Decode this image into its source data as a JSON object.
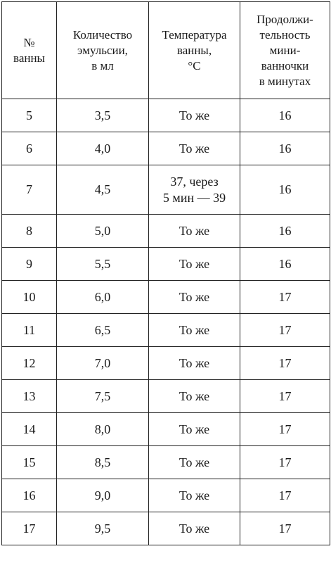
{
  "headers": [
    "№\nванны",
    "Количество\nэмульсии,\nв мл",
    "Температура\nванны,\n°C",
    "Продолжи-\nтельность\nмини-\nванночки\nв минутах"
  ],
  "rows": [
    {
      "bath": "5",
      "amount": "3,5",
      "temp": "То же",
      "duration": "16"
    },
    {
      "bath": "6",
      "amount": "4,0",
      "temp": "То же",
      "duration": "16"
    },
    {
      "bath": "7",
      "amount": "4,5",
      "temp": "37, через\n5 мин — 39",
      "duration": "16"
    },
    {
      "bath": "8",
      "amount": "5,0",
      "temp": "То же",
      "duration": "16"
    },
    {
      "bath": "9",
      "amount": "5,5",
      "temp": "То же",
      "duration": "16"
    },
    {
      "bath": "10",
      "amount": "6,0",
      "temp": "То же",
      "duration": "17"
    },
    {
      "bath": "11",
      "amount": "6,5",
      "temp": "То же",
      "duration": "17"
    },
    {
      "bath": "12",
      "amount": "7,0",
      "temp": "То же",
      "duration": "17"
    },
    {
      "bath": "13",
      "amount": "7,5",
      "temp": "То же",
      "duration": "17"
    },
    {
      "bath": "14",
      "amount": "8,0",
      "temp": "То же",
      "duration": "17"
    },
    {
      "bath": "15",
      "amount": "8,5",
      "temp": "То же",
      "duration": "17"
    },
    {
      "bath": "16",
      "amount": "9,0",
      "temp": "То же",
      "duration": "17"
    },
    {
      "bath": "17",
      "amount": "9,5",
      "temp": "То же",
      "duration": "17"
    }
  ]
}
